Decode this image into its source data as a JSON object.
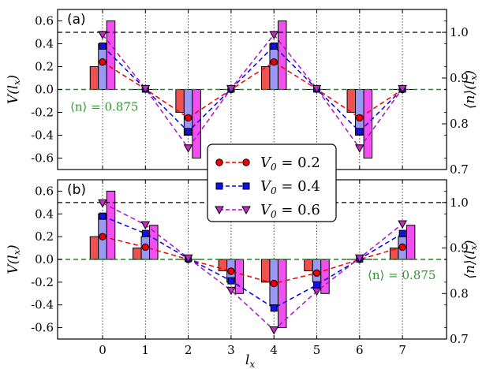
{
  "chart_data": [
    {
      "type": "bar",
      "panel_label": "(a)",
      "categories": [
        "0",
        "1",
        "2",
        "3",
        "4",
        "5",
        "6",
        "7"
      ],
      "xlabel": "l_x",
      "ylabel": "V(l_x)",
      "ylabel_right": "⟨n⟩(l_x)",
      "ylim": [
        -0.7,
        0.7
      ],
      "ylim_right": [
        0.7,
        1.05
      ],
      "yticks": [
        "0.6",
        "0.4",
        "0.2",
        "0.0",
        "-0.2",
        "-0.4",
        "-0.6"
      ],
      "yticks_right": [
        "1.0",
        "0.9",
        "0.8",
        "0.7"
      ],
      "hlines": {
        "left_0": 0.0,
        "right_1": 1.0
      },
      "annotation": "⟨n⟩ = 0.875",
      "bars": [
        {
          "V0": "0.2",
          "values": [
            0.2,
            0.0,
            -0.2,
            0.0,
            0.2,
            0.0,
            -0.2,
            0.0
          ]
        },
        {
          "V0": "0.4",
          "values": [
            0.4,
            0.0,
            -0.4,
            0.0,
            0.4,
            0.0,
            -0.4,
            0.0
          ]
        },
        {
          "V0": "0.6",
          "values": [
            0.6,
            0.0,
            -0.6,
            0.0,
            0.6,
            0.0,
            -0.6,
            0.0
          ]
        }
      ],
      "density_series": [
        {
          "V0": "0.2",
          "values": [
            0.935,
            0.876,
            0.813,
            0.875,
            0.935,
            0.876,
            0.813,
            0.875
          ]
        },
        {
          "V0": "0.4",
          "values": [
            0.97,
            0.876,
            0.783,
            0.876,
            0.97,
            0.876,
            0.783,
            0.876
          ]
        },
        {
          "V0": "0.6",
          "values": [
            0.995,
            0.877,
            0.747,
            0.877,
            0.995,
            0.877,
            0.747,
            0.877
          ]
        }
      ]
    },
    {
      "type": "bar",
      "panel_label": "(b)",
      "categories": [
        "0",
        "1",
        "2",
        "3",
        "4",
        "5",
        "6",
        "7"
      ],
      "xlabel": "l_x",
      "ylabel": "V(l_x)",
      "ylabel_right": "⟨n⟩(l_x)",
      "ylim": [
        -0.7,
        0.7
      ],
      "ylim_right": [
        0.7,
        1.05
      ],
      "yticks": [
        "0.6",
        "0.4",
        "0.2",
        "0.0",
        "-0.2",
        "-0.4",
        "-0.6"
      ],
      "yticks_right": [
        "1.0",
        "0.9",
        "0.8",
        "0.7"
      ],
      "hlines": {
        "left_0": 0.0,
        "right_1": 1.0
      },
      "annotation": "⟨n⟩ = 0.875",
      "bars": [
        {
          "V0": "0.2",
          "values": [
            0.2,
            0.1,
            0.0,
            -0.1,
            -0.2,
            -0.1,
            0.0,
            0.1
          ]
        },
        {
          "V0": "0.4",
          "values": [
            0.4,
            0.2,
            0.0,
            -0.2,
            -0.4,
            -0.2,
            0.0,
            0.2
          ]
        },
        {
          "V0": "0.6",
          "values": [
            0.6,
            0.3,
            0.0,
            -0.3,
            -0.6,
            -0.3,
            0.0,
            0.3
          ]
        }
      ],
      "density_series": [
        {
          "V0": "0.2",
          "values": [
            0.925,
            0.902,
            0.875,
            0.849,
            0.822,
            0.845,
            0.875,
            0.902
          ]
        },
        {
          "V0": "0.4",
          "values": [
            0.97,
            0.932,
            0.877,
            0.828,
            0.768,
            0.819,
            0.876,
            0.932
          ]
        },
        {
          "V0": "0.6",
          "values": [
            0.999,
            0.951,
            0.878,
            0.807,
            0.72,
            0.805,
            0.878,
            0.953
          ]
        }
      ]
    }
  ],
  "legend": {
    "placement": "center",
    "entries": [
      {
        "label": "V_0 = 0.2",
        "marker": "circle"
      },
      {
        "label": "V_0 = 0.4",
        "marker": "square"
      },
      {
        "label": "V_0 = 0.6",
        "marker": "triangle-down"
      }
    ]
  },
  "colors": {
    "bar_0.2": "#ef5050",
    "bar_0.4": "#9a98f5",
    "bar_0.6": "#f050f0",
    "line_0.2": "#ee0000",
    "line_0.4": "#0000ee",
    "line_0.6": "#b010c8",
    "marker_0.2": "#ee0000",
    "marker_0.4": "#1010ee",
    "marker_0.6": "#c22ac2",
    "zero_line": "#1a8a1a",
    "annotation": "#2a9a2a",
    "unit_line": "#000000"
  }
}
